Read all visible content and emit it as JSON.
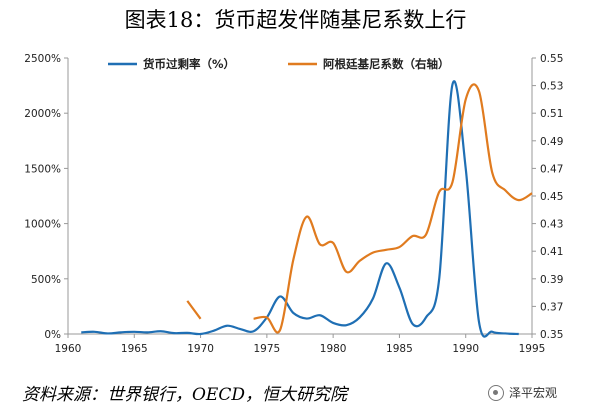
{
  "header": {
    "title": "图表18：货币超发伴随基尼系数上行"
  },
  "footer": {
    "source": "资料来源：世界银行，OECD，恒大研究院",
    "brand": "泽平宏观",
    "brand_icon": "wechat-logo-icon"
  },
  "chart_data": {
    "type": "line",
    "title": "",
    "xlabel": "",
    "ylabel": "",
    "ylabel_right": "",
    "xlim": [
      1960,
      1995
    ],
    "ylim": [
      0,
      2500
    ],
    "ylim_right": [
      0.35,
      0.55
    ],
    "x_ticks": [
      1960,
      1965,
      1970,
      1975,
      1980,
      1985,
      1990,
      1995
    ],
    "y_ticks": [
      "0%",
      "500%",
      "1000%",
      "1500%",
      "2000%",
      "2500%"
    ],
    "y_right_ticks": [
      "0.35",
      "0.37",
      "0.39",
      "0.41",
      "0.43",
      "0.45",
      "0.47",
      "0.49",
      "0.51",
      "0.53",
      "0.55"
    ],
    "grid": false,
    "legend": "top",
    "series": [
      {
        "name": "货币过剩率（%）",
        "axis": "left",
        "color": "#1f6fb4",
        "x": [
          1961,
          1962,
          1963,
          1964,
          1965,
          1966,
          1967,
          1968,
          1969,
          1970,
          1971,
          1972,
          1973,
          1974,
          1975,
          1976,
          1977,
          1978,
          1979,
          1980,
          1981,
          1982,
          1983,
          1984,
          1985,
          1986,
          1987,
          1988,
          1989,
          1990,
          1991,
          1992,
          1993,
          1994
        ],
        "y": [
          15,
          20,
          5,
          15,
          20,
          15,
          25,
          8,
          10,
          0,
          30,
          75,
          45,
          25,
          150,
          340,
          190,
          140,
          170,
          100,
          80,
          150,
          320,
          640,
          420,
          90,
          150,
          500,
          2260,
          1500,
          110,
          20,
          5,
          0
        ]
      },
      {
        "name": "阿根廷基尼系数（右轴）",
        "axis": "right",
        "color": "#e07b1f",
        "segments": [
          {
            "x": [
              1969,
              1970
            ],
            "y": [
              0.374,
              0.361
            ]
          },
          {
            "x": [
              1974,
              1975,
              1976,
              1977,
              1978,
              1979,
              1980,
              1981,
              1982,
              1983,
              1984,
              1985,
              1986,
              1987,
              1988,
              1989,
              1990,
              1991,
              1992,
              1993,
              1994,
              1995
            ],
            "y": [
              0.361,
              0.362,
              0.353,
              0.404,
              0.435,
              0.415,
              0.416,
              0.395,
              0.403,
              0.409,
              0.411,
              0.413,
              0.421,
              0.422,
              0.453,
              0.46,
              0.52,
              0.526,
              0.467,
              0.454,
              0.447,
              0.452
            ]
          }
        ]
      }
    ]
  }
}
